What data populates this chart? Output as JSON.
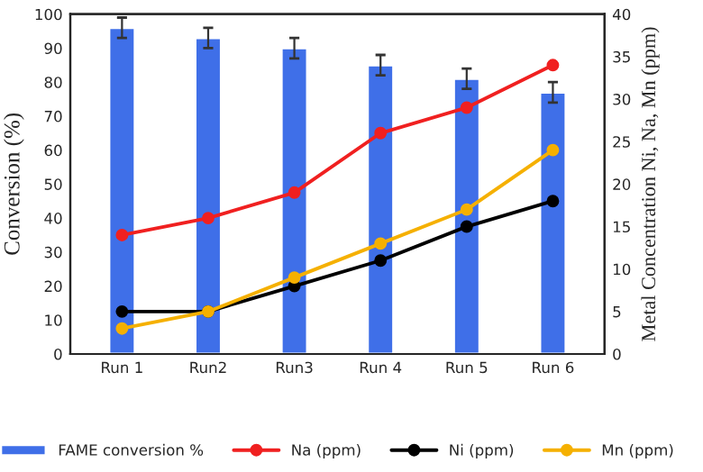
{
  "chart_data": {
    "type": "bar",
    "ylabel": "Conversion (%)",
    "y2label": "Metal Concentration Ni, Na, Mn (ppm)",
    "categories": [
      "Run 1",
      "Run2",
      "Run3",
      "Run 4",
      "Run 5",
      "Run 6"
    ],
    "series": [
      {
        "name": "FAME conversion %",
        "color": "#3f6fe8",
        "values": [
          96,
          93,
          90,
          85,
          81,
          77
        ],
        "errors": [
          3,
          3,
          3,
          3,
          3,
          3
        ]
      },
      {
        "name": "Na (ppm)",
        "type": "line",
        "axis": "y2",
        "color": "#f02020",
        "values": [
          14,
          16,
          19,
          26,
          29,
          34
        ]
      },
      {
        "name": "Ni (ppm)",
        "type": "line",
        "axis": "y2",
        "color": "#000000",
        "values": [
          5,
          5,
          8,
          11,
          15,
          18
        ]
      },
      {
        "name": "Mn (ppm)",
        "type": "line",
        "axis": "y2",
        "color": "#f5b000",
        "values": [
          3,
          5,
          9,
          13,
          17,
          24
        ]
      }
    ],
    "ylim": [
      0,
      100
    ],
    "yticks": [
      0,
      10,
      20,
      30,
      40,
      50,
      60,
      70,
      80,
      90,
      100
    ],
    "y2lim": [
      0,
      40
    ],
    "y2ticks": [
      0,
      5,
      10,
      15,
      20,
      25,
      30,
      35,
      40
    ],
    "marker": "circle",
    "grid": false,
    "legend": "bottom"
  }
}
